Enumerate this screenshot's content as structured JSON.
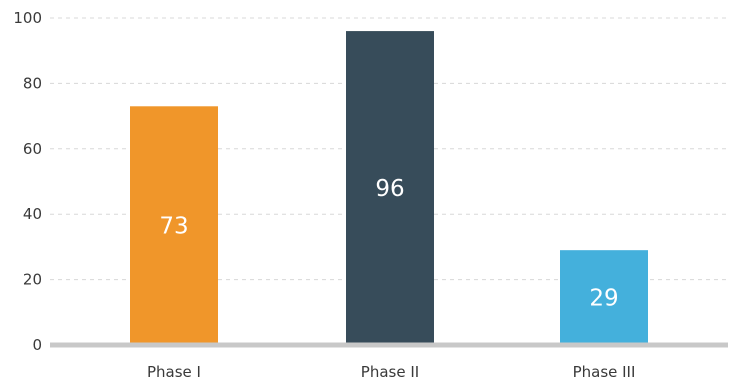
{
  "chart_data": {
    "type": "bar",
    "categories": [
      "Phase I",
      "Phase II",
      "Phase III"
    ],
    "values": [
      73,
      96,
      29
    ],
    "data_labels": [
      "73",
      "96",
      "29"
    ],
    "colors": [
      "#f0962a",
      "#374c5a",
      "#44b0dc"
    ],
    "title": "",
    "xlabel": "",
    "ylabel": "",
    "ylim": [
      0,
      100
    ],
    "yticks": [
      0,
      20,
      40,
      60,
      80,
      100
    ],
    "ytick_labels": [
      "0",
      "20",
      "40",
      "60",
      "80",
      "100"
    ],
    "grid": true,
    "legend": "none"
  }
}
